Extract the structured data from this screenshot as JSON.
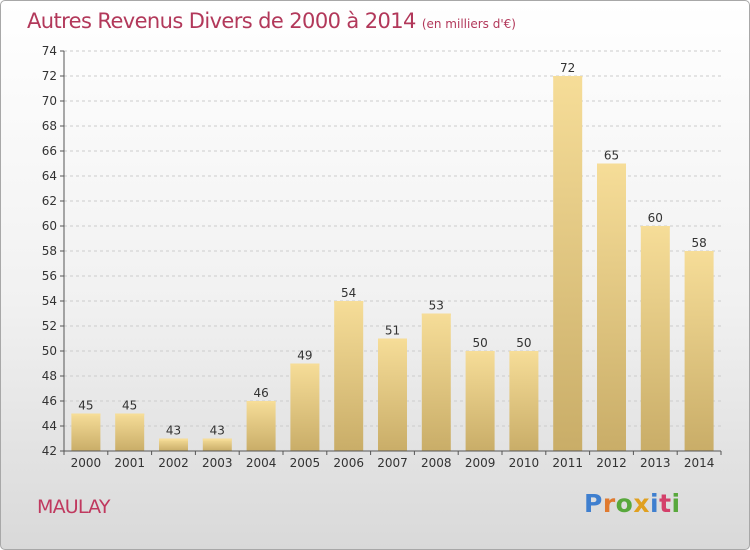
{
  "title": "Autres Revenus Divers de 2000 à 2014",
  "subtitle": "(en milliers d'€)",
  "location": "MAULAY",
  "logo": {
    "text": "Proxiti",
    "letter_colors": [
      "#3f7fcf",
      "#e07a2f",
      "#58a83c",
      "#e0a020",
      "#3f7fcf",
      "#d4406a",
      "#58a83c"
    ]
  },
  "colors": {
    "title": "#b2385a",
    "bar_light": "#f6dd98",
    "bar_dark": "#c9ad68",
    "axis": "#555555",
    "grid": "#cccccc"
  },
  "chart_data": {
    "type": "bar",
    "categories": [
      "2000",
      "2001",
      "2002",
      "2003",
      "2004",
      "2005",
      "2006",
      "2007",
      "2008",
      "2009",
      "2010",
      "2011",
      "2012",
      "2013",
      "2014"
    ],
    "values": [
      45,
      45,
      43,
      43,
      46,
      49,
      54,
      51,
      53,
      50,
      50,
      72,
      65,
      60,
      58
    ],
    "data_labels": [
      "45",
      "45",
      "43",
      "43",
      "46",
      "49",
      "54",
      "51",
      "53",
      "50",
      "50",
      "72",
      "65",
      "60",
      "58"
    ],
    "ylim": [
      42,
      74
    ],
    "yticks": [
      "42",
      "44",
      "46",
      "48",
      "50",
      "52",
      "54",
      "56",
      "58",
      "60",
      "62",
      "64",
      "66",
      "68",
      "70",
      "72",
      "74"
    ],
    "grid": "horizontal dashed",
    "legend": "none"
  }
}
